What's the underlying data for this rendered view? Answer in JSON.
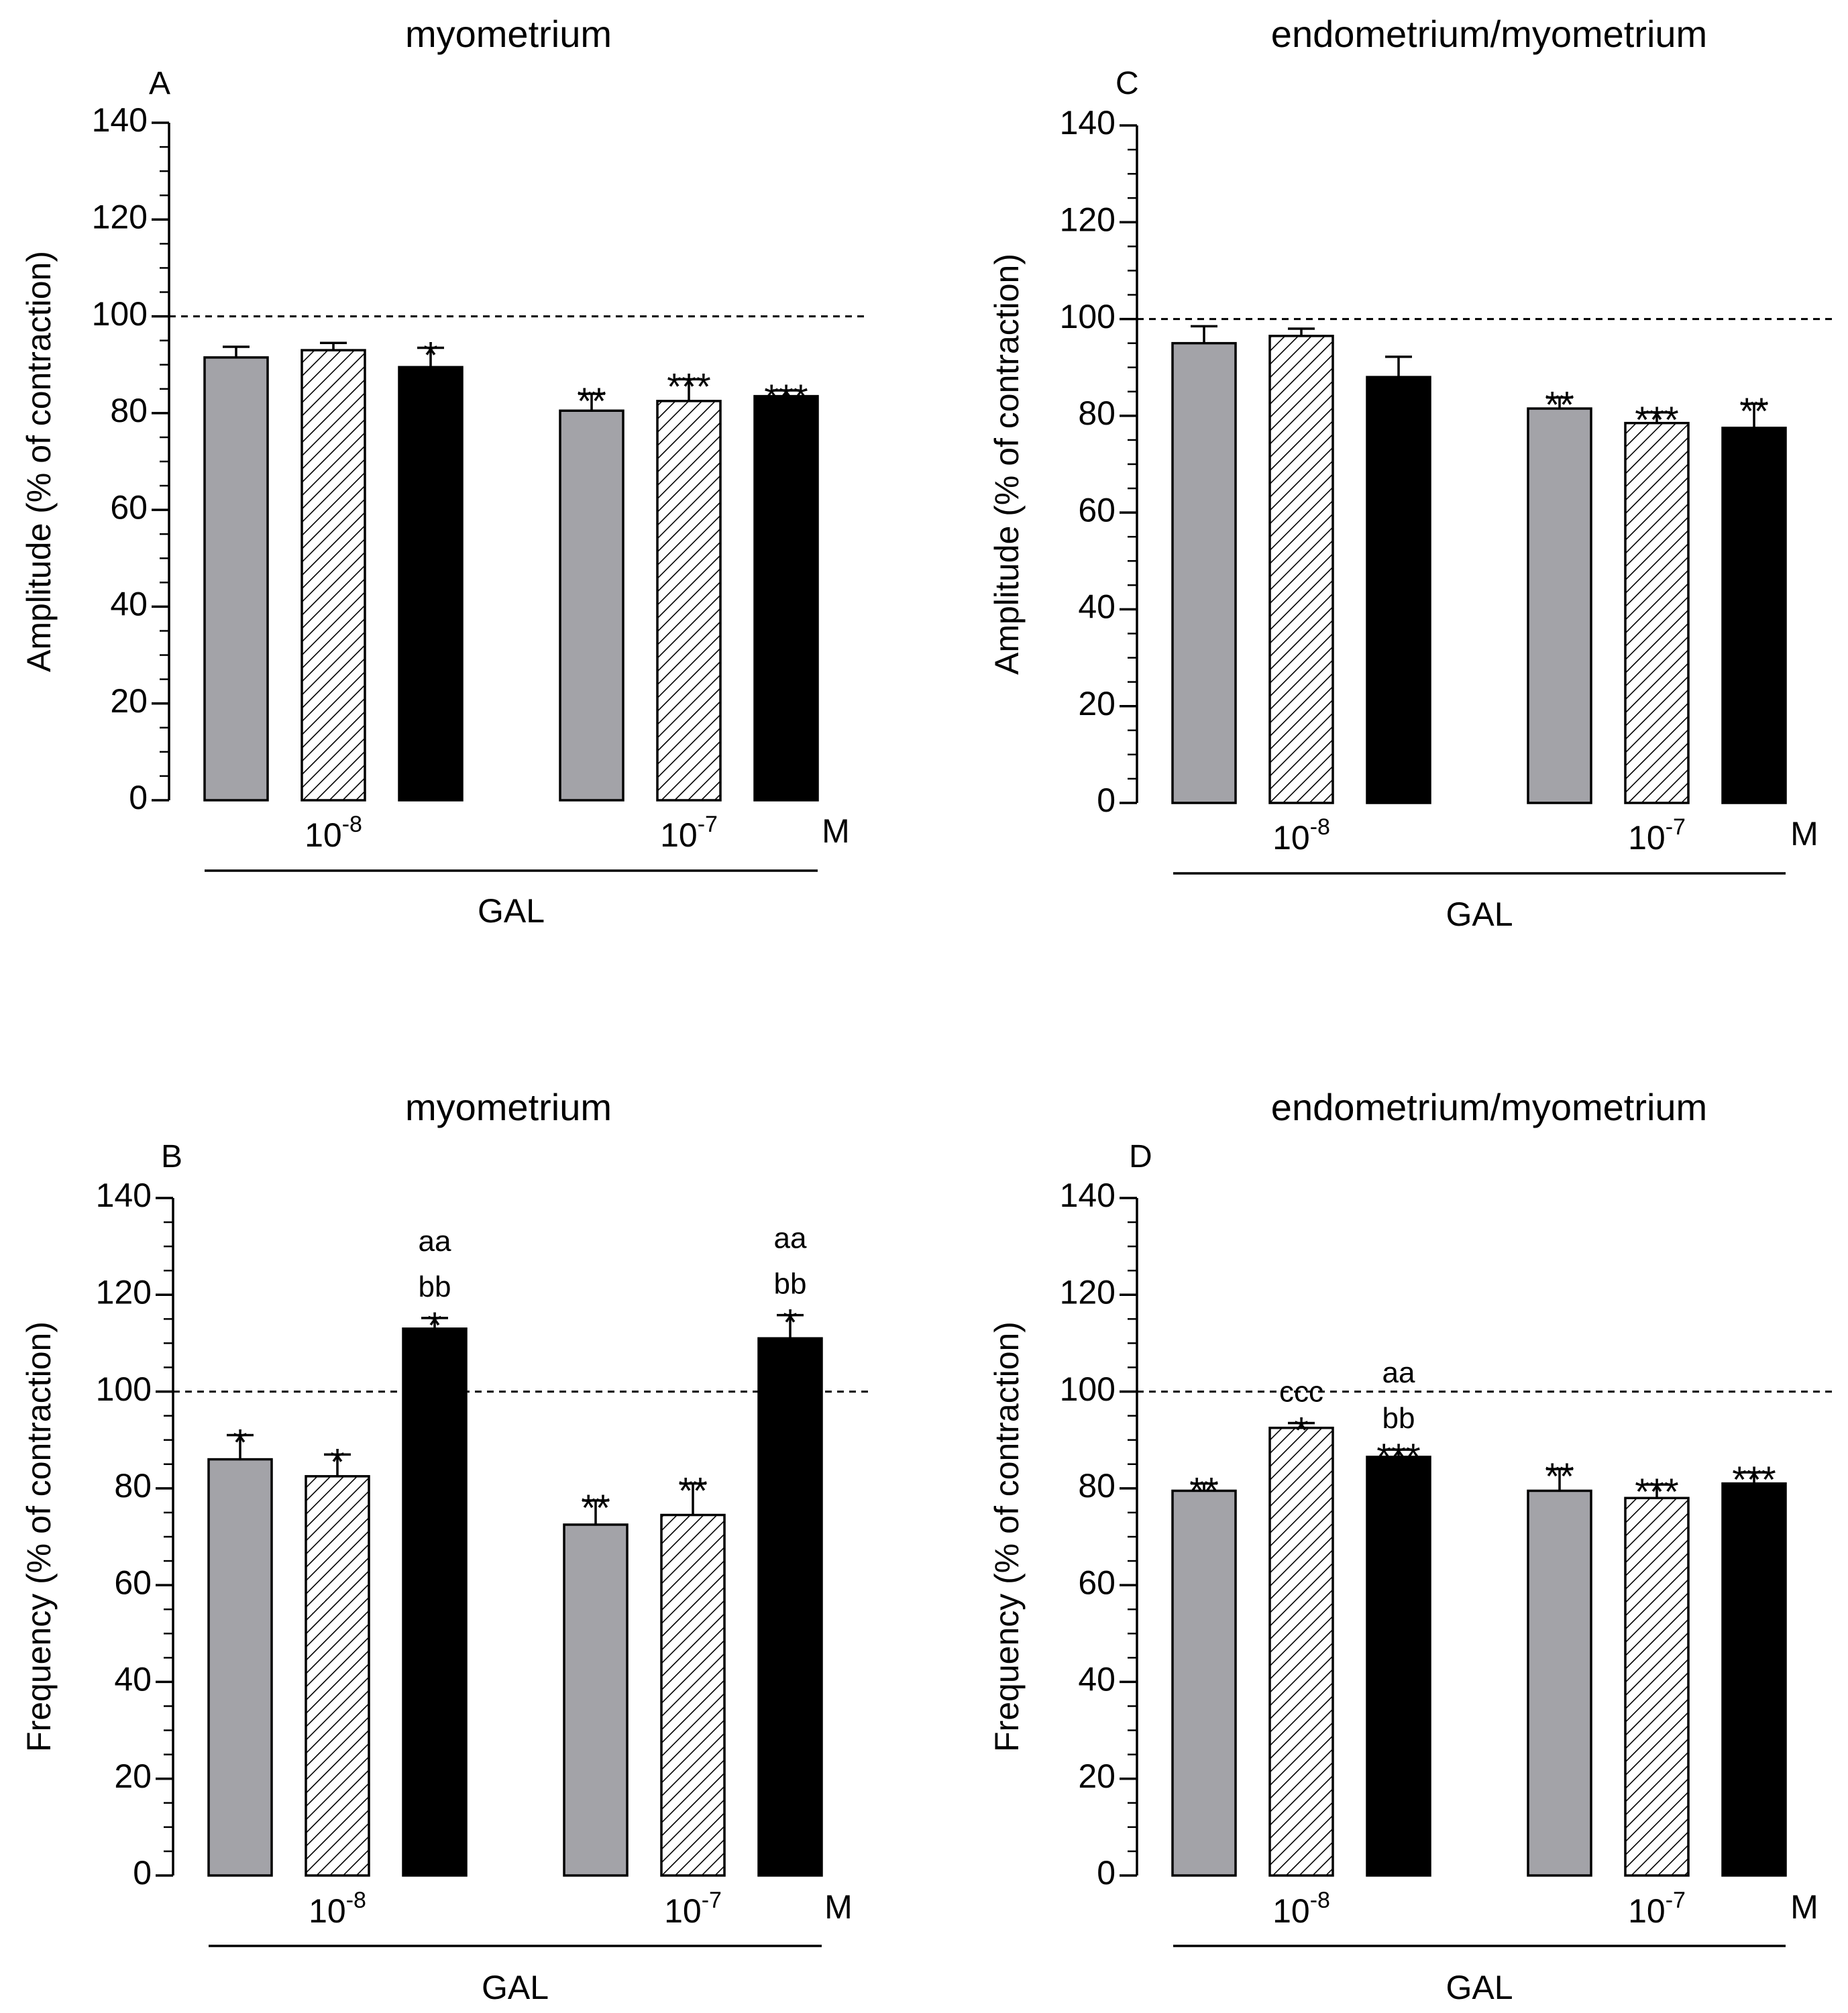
{
  "legend_colors": {
    "gray": "#a3a3a8",
    "black": "#000000",
    "hatch": "#ffffff",
    "outline": "#000000"
  },
  "series_styles": [
    "gray",
    "hatch",
    "black"
  ],
  "chart_data": [
    {
      "id": "A",
      "panel_label": "A",
      "type": "bar",
      "title": "myometrium",
      "ylabel": "Amplitude (% of contraction)",
      "ylim": [
        0,
        140
      ],
      "yticks": [
        0,
        20,
        40,
        60,
        80,
        100,
        120,
        140
      ],
      "reference_line": 100,
      "groups": [
        {
          "mantissa": "10",
          "exponent": "-8",
          "bars": [
            {
              "value": 91.5,
              "error": 2.2,
              "labels": []
            },
            {
              "value": 93,
              "error": 1.5,
              "labels": []
            },
            {
              "value": 89.5,
              "error": 4,
              "labels": [
                "*"
              ]
            }
          ]
        },
        {
          "mantissa": "10",
          "exponent": "-7",
          "bars": [
            {
              "value": 80.5,
              "error": 3.5,
              "labels": [
                "**"
              ]
            },
            {
              "value": 82.5,
              "error": 4.5,
              "labels": [
                "***"
              ]
            },
            {
              "value": 83.5,
              "error": 1.2,
              "labels": [
                "***"
              ]
            }
          ]
        }
      ],
      "unit": "M",
      "xlabel": "GAL"
    },
    {
      "id": "C",
      "panel_label": "C",
      "type": "bar",
      "title": "endometrium/myometrium",
      "ylabel": "Amplitude (% of contraction)",
      "ylim": [
        0,
        140
      ],
      "yticks": [
        0,
        20,
        40,
        60,
        80,
        100,
        120,
        140
      ],
      "reference_line": 100,
      "groups": [
        {
          "mantissa": "10",
          "exponent": "-8",
          "bars": [
            {
              "value": 95,
              "error": 3.5,
              "labels": []
            },
            {
              "value": 96.5,
              "error": 1.5,
              "labels": []
            },
            {
              "value": 88,
              "error": 4.2,
              "labels": []
            }
          ]
        },
        {
          "mantissa": "10",
          "exponent": "-7",
          "bars": [
            {
              "value": 81.5,
              "error": 2.3,
              "labels": [
                "**"
              ]
            },
            {
              "value": 78.5,
              "error": 2.2,
              "labels": [
                "***"
              ]
            },
            {
              "value": 77.5,
              "error": 5,
              "labels": [
                "**"
              ]
            }
          ]
        }
      ],
      "unit": "M",
      "xlabel": "GAL"
    },
    {
      "id": "B",
      "panel_label": "B",
      "type": "bar",
      "title": "myometrium",
      "ylabel": "Frequency (% of contraction)",
      "ylim": [
        0,
        140
      ],
      "yticks": [
        0,
        20,
        40,
        60,
        80,
        100,
        120,
        140
      ],
      "reference_line": 100,
      "groups": [
        {
          "mantissa": "10",
          "exponent": "-8",
          "bars": [
            {
              "value": 86,
              "error": 5,
              "labels": [
                "*"
              ]
            },
            {
              "value": 82.5,
              "error": 4.5,
              "labels": [
                "*"
              ]
            },
            {
              "value": 113,
              "error": 2.2,
              "labels": [
                "*",
                "bb",
                "aa"
              ]
            }
          ]
        },
        {
          "mantissa": "10",
          "exponent": "-7",
          "bars": [
            {
              "value": 72.5,
              "error": 5,
              "labels": [
                "**"
              ]
            },
            {
              "value": 74.5,
              "error": 6.5,
              "labels": [
                "**"
              ]
            },
            {
              "value": 111,
              "error": 4.8,
              "labels": [
                "*",
                "bb",
                "aa"
              ]
            }
          ]
        }
      ],
      "unit": "M",
      "xlabel": "GAL"
    },
    {
      "id": "D",
      "panel_label": "D",
      "type": "bar",
      "title": "endometrium/myometrium",
      "ylabel": "Frequency (% of contraction)",
      "ylim": [
        0,
        140
      ],
      "yticks": [
        0,
        20,
        40,
        60,
        80,
        100,
        120,
        140
      ],
      "reference_line": 100,
      "groups": [
        {
          "mantissa": "10",
          "exponent": "-8",
          "bars": [
            {
              "value": 79.5,
              "error": 1.5,
              "labels": [
                "**"
              ]
            },
            {
              "value": 92.5,
              "error": 1,
              "labels": [
                "*",
                "ccc"
              ]
            },
            {
              "value": 86.5,
              "error": 1.5,
              "labels": [
                "***",
                "bb",
                "aa"
              ]
            }
          ]
        },
        {
          "mantissa": "10",
          "exponent": "-7",
          "bars": [
            {
              "value": 79.5,
              "error": 4.5,
              "labels": [
                "**"
              ]
            },
            {
              "value": 78,
              "error": 2.8,
              "labels": [
                "***"
              ]
            },
            {
              "value": 81,
              "error": 2.3,
              "labels": [
                "***"
              ]
            }
          ]
        }
      ],
      "unit": "M",
      "xlabel": "GAL"
    }
  ]
}
